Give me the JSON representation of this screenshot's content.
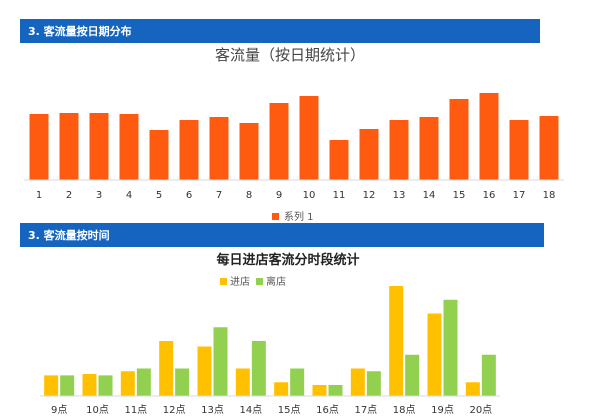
{
  "sections": [
    {
      "header": "3. 客流量按日期分布"
    },
    {
      "header": "3. 客流量按时间"
    }
  ],
  "chart_data": [
    {
      "type": "bar",
      "title": "客流量（按日期统计）",
      "categories": [
        "1",
        "2",
        "3",
        "4",
        "5",
        "6",
        "7",
        "8",
        "9",
        "10",
        "11",
        "12",
        "13",
        "14",
        "15",
        "16",
        "17",
        "18"
      ],
      "series": [
        {
          "name": "系列 1",
          "values": [
            66,
            67,
            67,
            66,
            50,
            60,
            63,
            57,
            77,
            84,
            40,
            51,
            60,
            63,
            81,
            87,
            60,
            64
          ]
        }
      ],
      "ylim": [
        0,
        100
      ],
      "grid": false,
      "legend": "bottom",
      "colors": [
        "#ff5b10"
      ]
    },
    {
      "type": "bar",
      "title": "每日进店客流分时段统计",
      "categories": [
        "9点",
        "10点",
        "11点",
        "12点",
        "13点",
        "14点",
        "15点",
        "16点",
        "17点",
        "18点",
        "19点",
        "20点"
      ],
      "series": [
        {
          "name": "进店",
          "values": [
            15,
            16,
            18,
            40,
            36,
            20,
            10,
            8,
            20,
            80,
            60,
            10
          ]
        },
        {
          "name": "离店",
          "values": [
            15,
            15,
            20,
            20,
            50,
            40,
            20,
            8,
            18,
            30,
            70,
            30
          ]
        }
      ],
      "ylim": [
        0,
        80
      ],
      "grid": false,
      "legend": "top",
      "colors": [
        "#ffc000",
        "#92d050"
      ]
    }
  ]
}
